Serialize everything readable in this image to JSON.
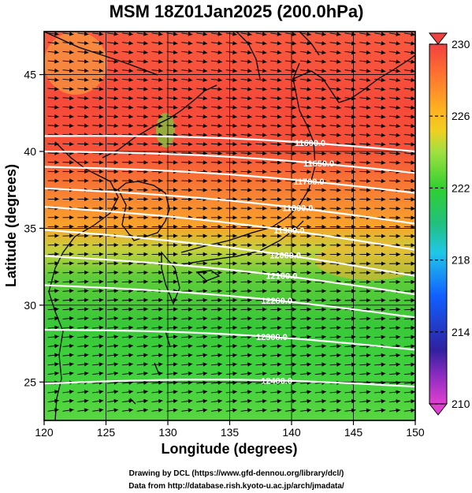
{
  "title": "MSM 18Z01Jan2025 (200.0hPa)",
  "credits": {
    "line1": "Drawing by DCL (https://www.gfd-dennou.org/library/dcl/)",
    "line2": "Data from http://database.rish.kyoto-u.ac.jp/arch/jmadata/"
  },
  "chart_data": {
    "type": "heatmap",
    "xlabel": "Longitude (degrees)",
    "ylabel": "Latitude  (degrees)",
    "xlim": [
      120,
      150
    ],
    "ylim": [
      22.5,
      47.8
    ],
    "x_ticks": [
      120,
      125,
      130,
      135,
      140,
      145,
      150
    ],
    "y_ticks": [
      25,
      30,
      35,
      40,
      45
    ],
    "colorbar": {
      "min": 210,
      "max": 230,
      "ticks": [
        210,
        214,
        218,
        222,
        226,
        230
      ],
      "colors": {
        "210": "#e040d0",
        "213": "#3020a0",
        "216": "#1060ff",
        "218": "#20d0e0",
        "220": "#20c060",
        "222": "#30d030",
        "224": "#a0e040",
        "226": "#ffb020",
        "228": "#ff7030",
        "230": "#f04040"
      }
    },
    "contours": [
      {
        "value": 11600,
        "label": "11600.0",
        "lat_at_120": 41.0,
        "lat_at_150": 40.0,
        "label_lon": 141.5
      },
      {
        "value": 11650,
        "label": "11650.0",
        "lat_at_120": 40.0,
        "lat_at_150": 38.6,
        "label_lon": 142.2
      },
      {
        "value": 11700,
        "label": "11700.0",
        "lat_at_120": 39.0,
        "lat_at_150": 37.3,
        "label_lon": 141.4
      },
      {
        "value": 11800,
        "label": "11800.0",
        "lat_at_120": 37.6,
        "lat_at_150": 35.3,
        "label_lon": 140.5
      },
      {
        "value": 11900,
        "label": "11900.0",
        "lat_at_120": 36.4,
        "lat_at_150": 33.6,
        "label_lon": 139.8
      },
      {
        "value": 12000,
        "label": "12000.0",
        "lat_at_120": 34.9,
        "lat_at_150": 31.9,
        "label_lon": 139.5
      },
      {
        "value": 12100,
        "label": "12100.0",
        "lat_at_120": 33.2,
        "lat_at_150": 30.7,
        "label_lon": 139.2
      },
      {
        "value": 12200,
        "label": "12200.0",
        "lat_at_120": 31.3,
        "lat_at_150": 29.2,
        "label_lon": 138.8
      },
      {
        "value": 12300,
        "label": "12300.0",
        "lat_at_120": 28.4,
        "lat_at_150": 27.1,
        "label_lon": 138.4
      },
      {
        "value": 12400,
        "label": "12400.0",
        "lat_at_120": 24.9,
        "lat_at_150": 24.7,
        "label_lon": 138.8
      }
    ]
  }
}
